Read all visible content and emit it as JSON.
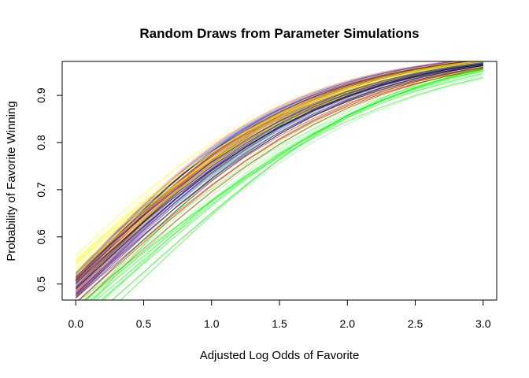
{
  "chart_data": {
    "type": "line",
    "title": "Random Draws from Parameter Simulations",
    "xlabel": "Adjusted Log Odds of Favorite",
    "ylabel": "Probability of Favorite Winning",
    "xlim": [
      -0.1,
      3.1
    ],
    "ylim": [
      0.466,
      0.972
    ],
    "x_ticks": [
      0.0,
      0.5,
      1.0,
      1.5,
      2.0,
      2.5,
      3.0
    ],
    "x_tick_labels": [
      "0.0",
      "0.5",
      "1.0",
      "1.5",
      "2.0",
      "2.5",
      "3.0"
    ],
    "y_ticks": [
      0.5,
      0.6,
      0.7,
      0.8,
      0.9
    ],
    "y_tick_labels": [
      "0.5",
      "0.6",
      "0.7",
      "0.8",
      "0.9"
    ],
    "grid": false,
    "legend": "none",
    "curve_form": "logistic: p = 1 / (1 + exp(-(a + b*x)))",
    "x": [
      0.0,
      0.25,
      0.5,
      0.75,
      1.0,
      1.25,
      1.5,
      1.75,
      2.0,
      2.25,
      2.5,
      2.75,
      3.0
    ],
    "series": [
      {
        "color": "#ffff00",
        "values": [
          0.56,
          0.628,
          0.691,
          0.748,
          0.797,
          0.839,
          0.874,
          0.903,
          0.926,
          0.944,
          0.958,
          0.969,
          0.977
        ]
      },
      {
        "color": "#ffff00",
        "values": [
          0.55,
          0.614,
          0.675,
          0.73,
          0.779,
          0.822,
          0.859,
          0.889,
          0.914,
          0.934,
          0.95,
          0.962,
          0.971
        ]
      },
      {
        "color": "#ffff00",
        "values": [
          0.545,
          0.604,
          0.661,
          0.714,
          0.762,
          0.805,
          0.842,
          0.874,
          0.9,
          0.922,
          0.94,
          0.954,
          0.965
        ]
      },
      {
        "color": "#ffff00",
        "values": [
          0.54,
          0.607,
          0.67,
          0.728,
          0.779,
          0.823,
          0.861,
          0.892,
          0.917,
          0.937,
          0.953,
          0.965,
          0.974
        ]
      },
      {
        "color": "#ffff00",
        "values": [
          0.53,
          0.594,
          0.656,
          0.713,
          0.765,
          0.811,
          0.85,
          0.882,
          0.909,
          0.93,
          0.947,
          0.96,
          0.97
        ]
      },
      {
        "color": "#ffff00",
        "values": [
          0.52,
          0.587,
          0.651,
          0.711,
          0.765,
          0.812,
          0.852,
          0.886,
          0.913,
          0.934,
          0.951,
          0.964,
          0.973
        ]
      },
      {
        "color": "#ffff00",
        "values": [
          0.515,
          0.579,
          0.641,
          0.699,
          0.752,
          0.799,
          0.84,
          0.874,
          0.903,
          0.926,
          0.944,
          0.958,
          0.968
        ]
      },
      {
        "color": "#ffff00",
        "values": [
          0.505,
          0.571,
          0.636,
          0.697,
          0.752,
          0.8,
          0.842,
          0.877,
          0.906,
          0.929,
          0.947,
          0.961,
          0.971
        ]
      },
      {
        "color": "#0000ff",
        "values": [
          0.515,
          0.581,
          0.645,
          0.704,
          0.758,
          0.805,
          0.846,
          0.88,
          0.908,
          0.93,
          0.947,
          0.96,
          0.97
        ]
      },
      {
        "color": "#0000ff",
        "values": [
          0.5,
          0.567,
          0.632,
          0.694,
          0.749,
          0.798,
          0.84,
          0.875,
          0.903,
          0.926,
          0.944,
          0.958,
          0.968
        ]
      },
      {
        "color": "#0000ff",
        "values": [
          0.49,
          0.556,
          0.621,
          0.683,
          0.74,
          0.79,
          0.833,
          0.869,
          0.899,
          0.923,
          0.941,
          0.956,
          0.967
        ]
      },
      {
        "color": "#0000ff",
        "values": [
          0.48,
          0.547,
          0.614,
          0.677,
          0.735,
          0.786,
          0.83,
          0.867,
          0.897,
          0.922,
          0.941,
          0.955,
          0.966
        ]
      },
      {
        "color": "#0000ff",
        "values": [
          0.47,
          0.536,
          0.602,
          0.666,
          0.724,
          0.777,
          0.822,
          0.86,
          0.891,
          0.916,
          0.936,
          0.951,
          0.963
        ]
      },
      {
        "color": "#000000",
        "values": [
          0.505,
          0.569,
          0.631,
          0.69,
          0.743,
          0.79,
          0.832,
          0.867,
          0.896,
          0.92,
          0.939,
          0.953,
          0.964
        ]
      },
      {
        "color": "#000000",
        "values": [
          0.49,
          0.557,
          0.623,
          0.685,
          0.741,
          0.791,
          0.834,
          0.87,
          0.899,
          0.923,
          0.941,
          0.956,
          0.966
        ]
      },
      {
        "color": "#000000",
        "values": [
          0.475,
          0.54,
          0.604,
          0.666,
          0.723,
          0.774,
          0.818,
          0.856,
          0.887,
          0.912,
          0.932,
          0.948,
          0.96
        ]
      },
      {
        "color": "#000000",
        "values": [
          0.46,
          0.527,
          0.594,
          0.658,
          0.718,
          0.772,
          0.818,
          0.857,
          0.889,
          0.915,
          0.935,
          0.951,
          0.963
        ]
      },
      {
        "color": "#ff0000",
        "values": [
          0.48,
          0.543,
          0.605,
          0.665,
          0.72,
          0.77,
          0.814,
          0.851,
          0.883,
          0.908,
          0.929,
          0.945,
          0.958
        ]
      },
      {
        "color": "#ff0000",
        "values": [
          0.47,
          0.532,
          0.594,
          0.654,
          0.71,
          0.761,
          0.806,
          0.845,
          0.877,
          0.904,
          0.925,
          0.942,
          0.955
        ]
      },
      {
        "color": "#ff0000",
        "values": [
          0.46,
          0.524,
          0.588,
          0.65,
          0.708,
          0.761,
          0.808,
          0.847,
          0.88,
          0.907,
          0.929,
          0.946,
          0.959
        ]
      },
      {
        "color": "#ff0000",
        "values": [
          0.45,
          0.512,
          0.575,
          0.637,
          0.695,
          0.749,
          0.797,
          0.838,
          0.873,
          0.901,
          0.924,
          0.942,
          0.956
        ]
      },
      {
        "color": "#00ff00",
        "values": [
          0.46,
          0.515,
          0.57,
          0.624,
          0.676,
          0.725,
          0.77,
          0.81,
          0.845,
          0.875,
          0.9,
          0.921,
          0.938
        ]
      },
      {
        "color": "#00ff00",
        "values": [
          0.45,
          0.508,
          0.566,
          0.623,
          0.678,
          0.729,
          0.776,
          0.817,
          0.853,
          0.883,
          0.909,
          0.929,
          0.946
        ]
      },
      {
        "color": "#00ff00",
        "values": [
          0.44,
          0.499,
          0.559,
          0.618,
          0.675,
          0.728,
          0.777,
          0.82,
          0.857,
          0.889,
          0.914,
          0.935,
          0.952
        ]
      },
      {
        "color": "#00ff00",
        "values": [
          0.43,
          0.49,
          0.551,
          0.611,
          0.669,
          0.724,
          0.774,
          0.818,
          0.856,
          0.889,
          0.915,
          0.937,
          0.954
        ]
      },
      {
        "color": "#00ff00",
        "values": [
          0.42,
          0.481,
          0.543,
          0.605,
          0.665,
          0.721,
          0.772,
          0.818,
          0.857,
          0.89,
          0.917,
          0.939,
          0.956
        ]
      },
      {
        "color": "#00ff00",
        "values": [
          0.4,
          0.462,
          0.525,
          0.589,
          0.651,
          0.71,
          0.764,
          0.812,
          0.853,
          0.888,
          0.916,
          0.939,
          0.957
        ]
      },
      {
        "color": "#00ff00",
        "values": [
          0.38,
          0.444,
          0.512,
          0.58,
          0.646,
          0.708,
          0.765,
          0.815,
          0.858,
          0.893,
          0.922,
          0.944,
          0.961
        ]
      }
    ],
    "background_palette": [
      "#ffff00",
      "#0000ff",
      "#000000",
      "#ff0000",
      "#00ff00",
      "#a0522d",
      "#9acd32",
      "#ff69b4"
    ]
  }
}
